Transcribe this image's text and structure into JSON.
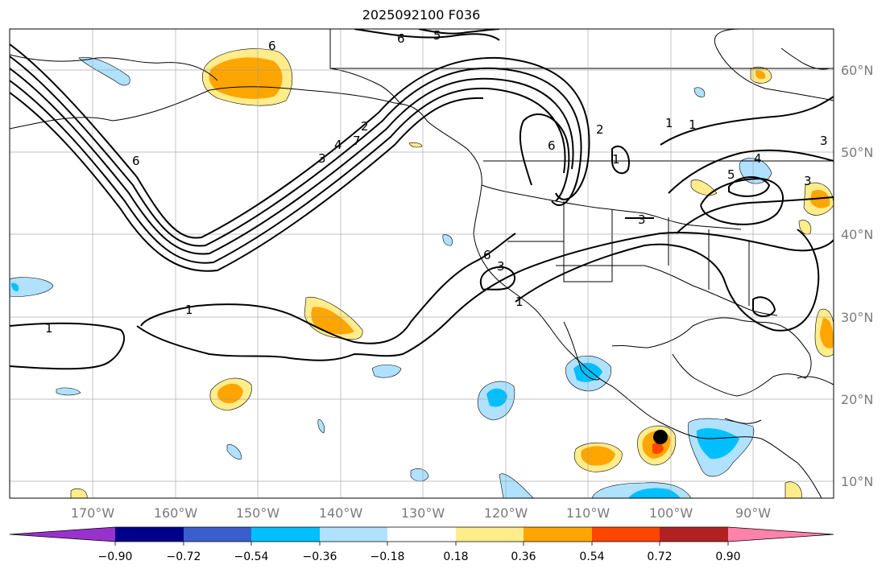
{
  "title": "2025092100 F036",
  "longitude_labels": [
    "170°W",
    "160°W",
    "150°W",
    "140°W",
    "130°W",
    "120°W",
    "110°W",
    "100°W",
    "90°W"
  ],
  "latitude_labels": [
    "60°N",
    "50°N",
    "40°N",
    "30°N",
    "20°N",
    "10°N"
  ],
  "contour_labels": [
    "6",
    "5",
    "6",
    "6",
    "2",
    "3",
    "4",
    "7",
    "1",
    "1",
    "1",
    "1",
    "2",
    "6",
    "1",
    "1",
    "3",
    "3",
    "3",
    "4",
    "5",
    "3",
    "6"
  ],
  "colorbar": {
    "tick_labels": [
      "−0.90",
      "−0.72",
      "−0.54",
      "−0.36",
      "−0.18",
      "0.18",
      "0.36",
      "0.54",
      "0.72",
      "0.90"
    ],
    "colors": [
      "#9932cc",
      "#00008b",
      "#3a5fcd",
      "#00bfff",
      "#b0e2ff",
      "#ffffff",
      "#ffec8b",
      "#ffa500",
      "#ff4500",
      "#b22222",
      "#ff82ab"
    ]
  },
  "colors": {
    "positive_accent": "#ffa500",
    "negative_accent": "#00bfff",
    "marker": "#000000"
  }
}
